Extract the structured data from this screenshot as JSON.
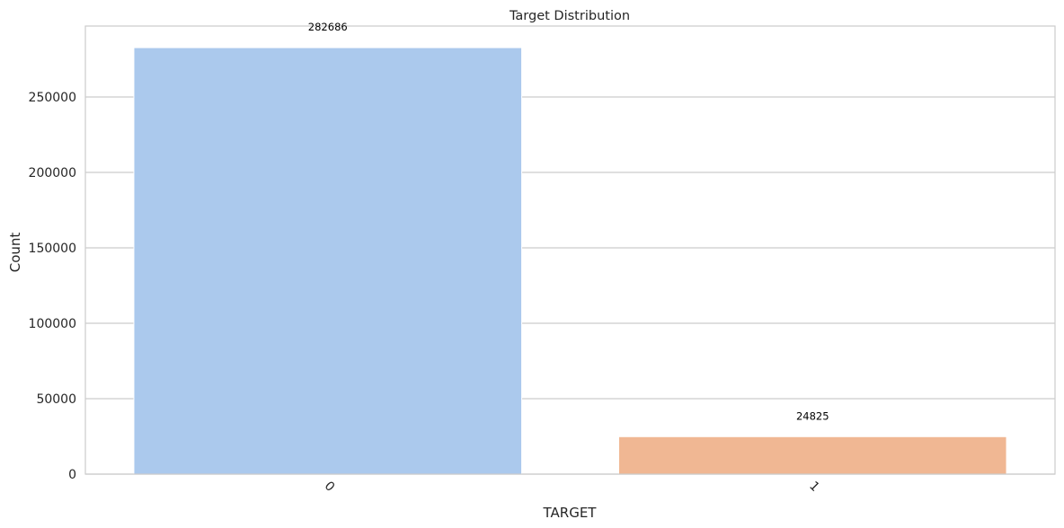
{
  "chart_data": {
    "type": "bar",
    "title": "Target Distribution",
    "xlabel": "TARGET",
    "ylabel": "Count",
    "categories": [
      "0",
      "1"
    ],
    "values": [
      282686,
      24825
    ],
    "data_labels": [
      "282686",
      "24825"
    ],
    "ylim": [
      0,
      297000
    ],
    "yticks": [
      0,
      50000,
      100000,
      150000,
      200000,
      250000
    ],
    "ytick_labels": [
      "0",
      "50000",
      "100000",
      "150000",
      "200000",
      "250000"
    ],
    "xtick_rotation": 45,
    "grid": "horizontal",
    "colors": [
      "#abc9ed",
      "#f0b793"
    ],
    "grid_color": "#cccccc",
    "frame_color": "#cccccc",
    "text_color": "#262626"
  }
}
